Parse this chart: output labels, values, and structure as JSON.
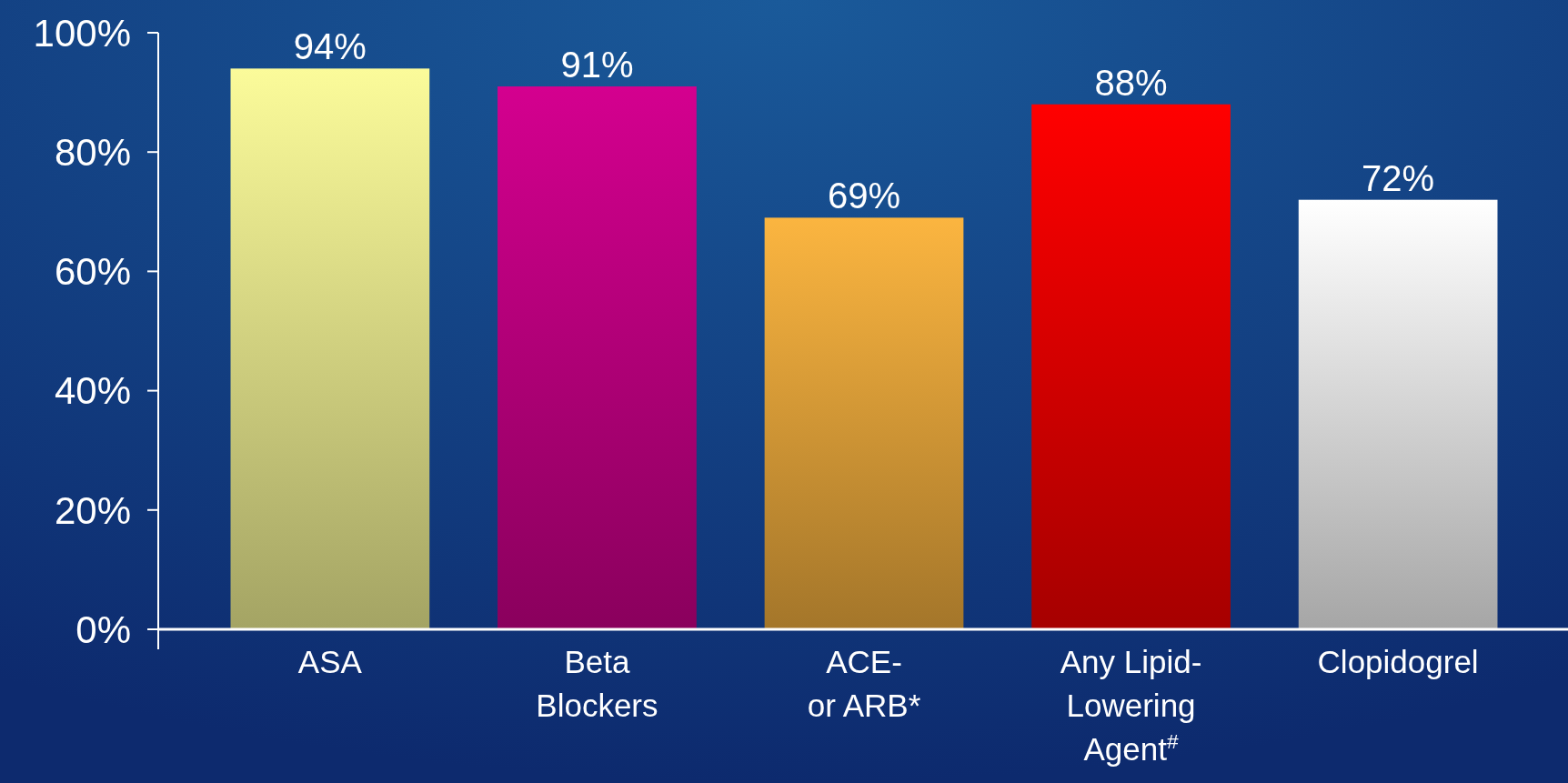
{
  "chart_data": {
    "type": "bar",
    "categories": [
      "ASA",
      "Beta\nBlockers",
      "ACE-\nor ARB*",
      "Any Lipid-\nLowering\nAgent$^{#}$",
      "Clopidogrel"
    ],
    "values": [
      94,
      91,
      69,
      88,
      72
    ],
    "colors": [
      "#fbfb9a",
      "#d4008f",
      "#fbb540",
      "#ff0000",
      "#ffffff"
    ],
    "ylim": [
      0,
      100
    ],
    "yticks": [
      {
        "value": 0,
        "label": "0%"
      },
      {
        "value": 20,
        "label": "20%"
      },
      {
        "value": 40,
        "label": "40%"
      },
      {
        "value": 60,
        "label": "60%"
      },
      {
        "value": 80,
        "label": "80%"
      },
      {
        "value": 100,
        "label": "100%"
      }
    ],
    "data_labels": true,
    "value_labels": [
      "94%",
      "91%",
      "69%",
      "88%",
      "72%"
    ],
    "grid": false
  }
}
